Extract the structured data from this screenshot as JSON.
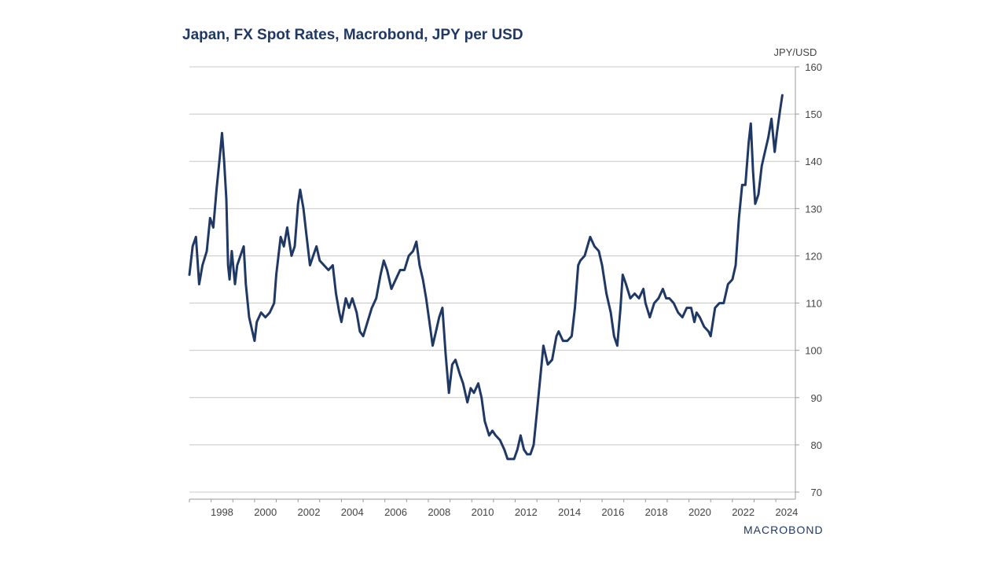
{
  "chart_data": {
    "type": "line",
    "title": "Japan, FX Spot Rates, Macrobond, JPY per USD",
    "unit_label": "JPY/USD",
    "ylim": [
      70,
      160
    ],
    "y_ticks": [
      70,
      80,
      90,
      100,
      110,
      120,
      130,
      140,
      150,
      160
    ],
    "xlim": [
      1997.0,
      2024.9
    ],
    "x_ticks": [
      1998,
      2000,
      2002,
      2004,
      2006,
      2008,
      2010,
      2012,
      2014,
      2016,
      2018,
      2020,
      2022,
      2024
    ],
    "grid": true,
    "line_color": "#1f3864",
    "series": [
      {
        "name": "JPY per USD",
        "points": [
          [
            1997.0,
            116
          ],
          [
            1997.15,
            122
          ],
          [
            1997.3,
            124
          ],
          [
            1997.45,
            114
          ],
          [
            1997.6,
            118
          ],
          [
            1997.8,
            121
          ],
          [
            1997.95,
            128
          ],
          [
            1998.1,
            126
          ],
          [
            1998.25,
            134
          ],
          [
            1998.4,
            141
          ],
          [
            1998.5,
            146
          ],
          [
            1998.6,
            140
          ],
          [
            1998.7,
            132
          ],
          [
            1998.78,
            118
          ],
          [
            1998.85,
            115
          ],
          [
            1998.95,
            121
          ],
          [
            1999.1,
            114
          ],
          [
            1999.2,
            118
          ],
          [
            1999.35,
            120
          ],
          [
            1999.5,
            122
          ],
          [
            1999.6,
            114
          ],
          [
            1999.75,
            107
          ],
          [
            1999.9,
            104
          ],
          [
            2000.0,
            102
          ],
          [
            2000.1,
            106
          ],
          [
            2000.3,
            108
          ],
          [
            2000.5,
            107
          ],
          [
            2000.7,
            108
          ],
          [
            2000.9,
            110
          ],
          [
            2001.0,
            116
          ],
          [
            2001.2,
            124
          ],
          [
            2001.35,
            122
          ],
          [
            2001.5,
            126
          ],
          [
            2001.7,
            120
          ],
          [
            2001.85,
            122
          ],
          [
            2002.0,
            131
          ],
          [
            2002.1,
            134
          ],
          [
            2002.25,
            130
          ],
          [
            2002.4,
            124
          ],
          [
            2002.55,
            118
          ],
          [
            2002.7,
            120
          ],
          [
            2002.85,
            122
          ],
          [
            2003.0,
            119
          ],
          [
            2003.2,
            118
          ],
          [
            2003.4,
            117
          ],
          [
            2003.6,
            118
          ],
          [
            2003.75,
            112
          ],
          [
            2003.9,
            108
          ],
          [
            2004.0,
            106
          ],
          [
            2004.2,
            111
          ],
          [
            2004.35,
            109
          ],
          [
            2004.5,
            111
          ],
          [
            2004.7,
            108
          ],
          [
            2004.85,
            104
          ],
          [
            2005.0,
            103
          ],
          [
            2005.2,
            106
          ],
          [
            2005.4,
            109
          ],
          [
            2005.6,
            111
          ],
          [
            2005.8,
            116
          ],
          [
            2005.95,
            119
          ],
          [
            2006.1,
            117
          ],
          [
            2006.3,
            113
          ],
          [
            2006.5,
            115
          ],
          [
            2006.7,
            117
          ],
          [
            2006.9,
            117
          ],
          [
            2007.1,
            120
          ],
          [
            2007.3,
            121
          ],
          [
            2007.45,
            123
          ],
          [
            2007.6,
            118
          ],
          [
            2007.75,
            115
          ],
          [
            2007.9,
            111
          ],
          [
            2008.05,
            106
          ],
          [
            2008.2,
            101
          ],
          [
            2008.35,
            104
          ],
          [
            2008.5,
            107
          ],
          [
            2008.65,
            109
          ],
          [
            2008.8,
            99
          ],
          [
            2008.95,
            91
          ],
          [
            2009.1,
            97
          ],
          [
            2009.25,
            98
          ],
          [
            2009.45,
            95
          ],
          [
            2009.6,
            93
          ],
          [
            2009.8,
            89
          ],
          [
            2009.95,
            92
          ],
          [
            2010.1,
            91
          ],
          [
            2010.3,
            93
          ],
          [
            2010.45,
            90
          ],
          [
            2010.6,
            85
          ],
          [
            2010.8,
            82
          ],
          [
            2010.95,
            83
          ],
          [
            2011.1,
            82
          ],
          [
            2011.3,
            81
          ],
          [
            2011.5,
            79
          ],
          [
            2011.65,
            77
          ],
          [
            2011.8,
            77
          ],
          [
            2011.95,
            77
          ],
          [
            2012.1,
            79
          ],
          [
            2012.25,
            82
          ],
          [
            2012.4,
            79
          ],
          [
            2012.55,
            78
          ],
          [
            2012.7,
            78
          ],
          [
            2012.85,
            80
          ],
          [
            2013.0,
            87
          ],
          [
            2013.15,
            94
          ],
          [
            2013.3,
            101
          ],
          [
            2013.5,
            97
          ],
          [
            2013.7,
            98
          ],
          [
            2013.9,
            103
          ],
          [
            2014.0,
            104
          ],
          [
            2014.2,
            102
          ],
          [
            2014.4,
            102
          ],
          [
            2014.6,
            103
          ],
          [
            2014.75,
            109
          ],
          [
            2014.9,
            118
          ],
          [
            2015.0,
            119
          ],
          [
            2015.2,
            120
          ],
          [
            2015.45,
            124
          ],
          [
            2015.65,
            122
          ],
          [
            2015.85,
            121
          ],
          [
            2016.0,
            118
          ],
          [
            2016.2,
            112
          ],
          [
            2016.4,
            108
          ],
          [
            2016.55,
            103
          ],
          [
            2016.7,
            101
          ],
          [
            2016.85,
            109
          ],
          [
            2016.95,
            116
          ],
          [
            2017.1,
            114
          ],
          [
            2017.3,
            111
          ],
          [
            2017.5,
            112
          ],
          [
            2017.7,
            111
          ],
          [
            2017.9,
            113
          ],
          [
            2018.0,
            110
          ],
          [
            2018.2,
            107
          ],
          [
            2018.4,
            110
          ],
          [
            2018.6,
            111
          ],
          [
            2018.8,
            113
          ],
          [
            2018.95,
            111
          ],
          [
            2019.1,
            111
          ],
          [
            2019.3,
            110
          ],
          [
            2019.5,
            108
          ],
          [
            2019.7,
            107
          ],
          [
            2019.9,
            109
          ],
          [
            2020.1,
            109
          ],
          [
            2020.25,
            106
          ],
          [
            2020.35,
            108
          ],
          [
            2020.5,
            107
          ],
          [
            2020.7,
            105
          ],
          [
            2020.9,
            104
          ],
          [
            2021.0,
            103
          ],
          [
            2021.2,
            109
          ],
          [
            2021.4,
            110
          ],
          [
            2021.6,
            110
          ],
          [
            2021.8,
            114
          ],
          [
            2022.0,
            115
          ],
          [
            2022.15,
            118
          ],
          [
            2022.3,
            128
          ],
          [
            2022.45,
            135
          ],
          [
            2022.6,
            135
          ],
          [
            2022.75,
            144
          ],
          [
            2022.85,
            148
          ],
          [
            2022.95,
            138
          ],
          [
            2023.05,
            131
          ],
          [
            2023.2,
            133
          ],
          [
            2023.35,
            139
          ],
          [
            2023.5,
            142
          ],
          [
            2023.65,
            145
          ],
          [
            2023.8,
            149
          ],
          [
            2023.95,
            142
          ],
          [
            2024.05,
            146
          ],
          [
            2024.2,
            151
          ],
          [
            2024.3,
            154
          ]
        ]
      }
    ]
  },
  "brand": {
    "label": "MACROBOND"
  }
}
